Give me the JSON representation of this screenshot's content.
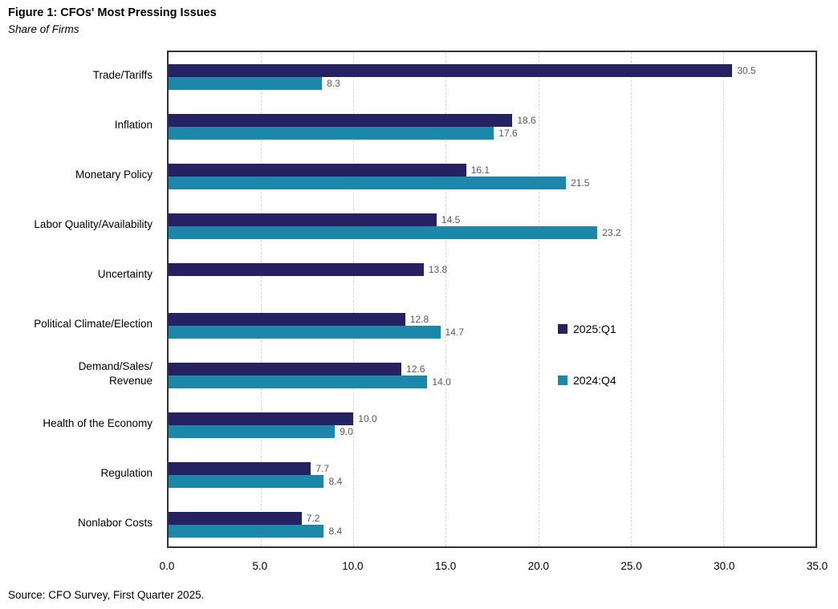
{
  "figure": {
    "title": "Figure 1: CFOs' Most Pressing Issues",
    "subtitle": "Share of Firms",
    "source": "Source: CFO Survey, First Quarter 2025."
  },
  "colors": {
    "series_2025q1": "#262162",
    "series_2024q4": "#1B87A9",
    "gridline": "#D9D9D9",
    "plot_border": "#333333",
    "value_label": "#595959",
    "axis_text": "#000000"
  },
  "chart_data": {
    "type": "bar",
    "orientation": "horizontal",
    "title": "Figure 1: CFOs' Most Pressing Issues",
    "subtitle": "Share of Firms",
    "categories": [
      "Trade/Tariffs",
      "Inflation",
      "Monetary Policy",
      "Labor Quality/Availability",
      "Uncertainty",
      "Political Climate/Election",
      "Demand/Sales/\nRevenue",
      "Health of the Economy",
      "Regulation",
      "Nonlabor Costs"
    ],
    "series": [
      {
        "name": "2025:Q1",
        "color": "#262162",
        "values": [
          30.5,
          18.6,
          16.1,
          14.5,
          13.8,
          12.8,
          12.6,
          10.0,
          7.7,
          7.2
        ]
      },
      {
        "name": "2024:Q4",
        "color": "#1B87A9",
        "values": [
          8.3,
          17.6,
          21.5,
          23.2,
          null,
          14.7,
          14.0,
          9.0,
          8.4,
          8.4
        ]
      }
    ],
    "xlim": [
      0,
      35
    ],
    "xtick_step": 5,
    "xtick_labels": [
      "0.0",
      "5.0",
      "10.0",
      "15.0",
      "20.0",
      "25.0",
      "30.0",
      "35.0"
    ],
    "grid": "vertical",
    "legend_position": "inside-right",
    "value_labels": true
  }
}
